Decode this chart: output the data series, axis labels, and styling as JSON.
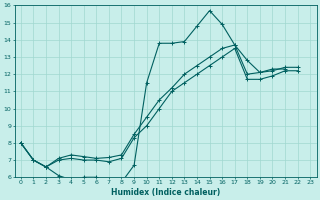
{
  "xlabel": "Humidex (Indice chaleur)",
  "xlim": [
    -0.5,
    23.5
  ],
  "ylim": [
    6,
    16
  ],
  "xticks": [
    0,
    1,
    2,
    3,
    4,
    5,
    6,
    7,
    8,
    9,
    10,
    11,
    12,
    13,
    14,
    15,
    16,
    17,
    18,
    19,
    20,
    21,
    22,
    23
  ],
  "yticks": [
    6,
    7,
    8,
    9,
    10,
    11,
    12,
    13,
    14,
    15,
    16
  ],
  "bg_color": "#c8eeea",
  "grid_color": "#a0d8d0",
  "line_color": "#006060",
  "line1": [
    [
      0,
      8.0
    ],
    [
      1,
      7.0
    ],
    [
      2,
      6.6
    ],
    [
      3,
      6.1
    ],
    [
      4,
      5.85
    ],
    [
      5,
      6.0
    ],
    [
      6,
      6.0
    ],
    [
      7,
      5.85
    ],
    [
      8,
      5.7
    ],
    [
      9,
      6.7
    ],
    [
      10,
      11.5
    ],
    [
      11,
      13.8
    ],
    [
      12,
      13.8
    ],
    [
      13,
      13.9
    ],
    [
      14,
      14.8
    ],
    [
      15,
      15.7
    ],
    [
      16,
      14.9
    ],
    [
      17,
      13.7
    ],
    [
      18,
      12.8
    ],
    [
      19,
      12.1
    ],
    [
      20,
      12.2
    ],
    [
      21,
      12.4
    ],
    [
      22,
      12.4
    ]
  ],
  "line2": [
    [
      0,
      8.0
    ],
    [
      1,
      7.0
    ],
    [
      2,
      6.6
    ],
    [
      3,
      7.1
    ],
    [
      4,
      7.3
    ],
    [
      5,
      7.2
    ],
    [
      6,
      7.1
    ],
    [
      7,
      7.15
    ],
    [
      8,
      7.3
    ],
    [
      9,
      8.5
    ],
    [
      10,
      9.5
    ],
    [
      11,
      10.5
    ],
    [
      12,
      11.2
    ],
    [
      13,
      12.0
    ],
    [
      14,
      12.5
    ],
    [
      15,
      13.0
    ],
    [
      16,
      13.5
    ],
    [
      17,
      13.7
    ],
    [
      18,
      12.0
    ],
    [
      19,
      12.1
    ],
    [
      20,
      12.3
    ],
    [
      21,
      12.3
    ]
  ],
  "line3": [
    [
      0,
      8.0
    ],
    [
      1,
      7.0
    ],
    [
      2,
      6.6
    ],
    [
      3,
      7.0
    ],
    [
      4,
      7.1
    ],
    [
      5,
      7.0
    ],
    [
      6,
      7.0
    ],
    [
      7,
      6.9
    ],
    [
      8,
      7.1
    ],
    [
      9,
      8.3
    ],
    [
      10,
      9.0
    ],
    [
      11,
      10.0
    ],
    [
      12,
      11.0
    ],
    [
      13,
      11.5
    ],
    [
      14,
      12.0
    ],
    [
      15,
      12.5
    ],
    [
      16,
      13.0
    ],
    [
      17,
      13.5
    ],
    [
      18,
      11.7
    ],
    [
      19,
      11.7
    ],
    [
      20,
      11.9
    ],
    [
      21,
      12.2
    ],
    [
      22,
      12.2
    ]
  ]
}
